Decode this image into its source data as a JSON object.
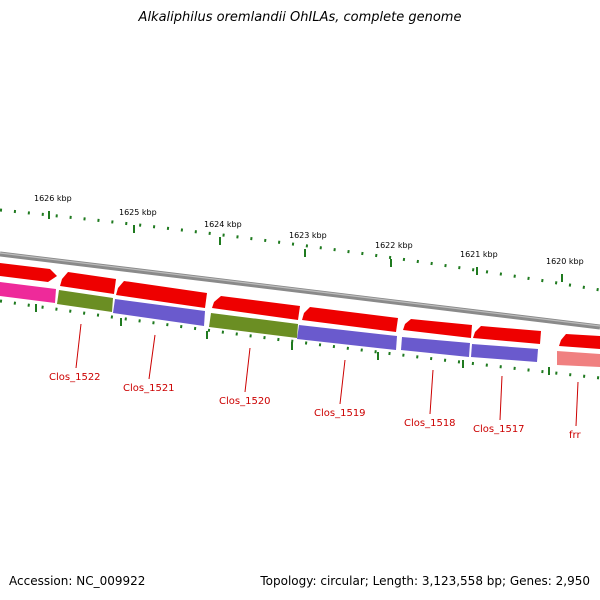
{
  "title": "Alkaliphilus oremlandii OhILAs, complete genome",
  "footer": {
    "accession": "Accession: NC_009922",
    "summary": "Topology: circular; Length: 3,123,558 bp; Genes: 2,950"
  },
  "colors": {
    "backbone": "#8a8a8a",
    "tick": "#1f7a1f",
    "label": "#cc0000",
    "forward_arrow": "#ee0000",
    "olive": "#6b8e23",
    "slate": "#6a5acd",
    "magenta": "#ee2a9a",
    "salmon": "#f08080"
  },
  "axis": {
    "ticks": [
      {
        "label": "1626 kbp",
        "kbp": 1626
      },
      {
        "label": "1625 kbp",
        "kbp": 1625
      },
      {
        "label": "1624 kbp",
        "kbp": 1624
      },
      {
        "label": "1623 kbp",
        "kbp": 1623
      },
      {
        "label": "1622 kbp",
        "kbp": 1622
      },
      {
        "label": "1621 kbp",
        "kbp": 1621
      },
      {
        "label": "1620 kbp",
        "kbp": 1620
      }
    ]
  },
  "genes": [
    {
      "label": "Clos_1522"
    },
    {
      "label": "Clos_1521"
    },
    {
      "label": "Clos_1520"
    },
    {
      "label": "Clos_1519"
    },
    {
      "label": "Clos_1518"
    },
    {
      "label": "Clos_1517"
    },
    {
      "label": "frr"
    }
  ]
}
